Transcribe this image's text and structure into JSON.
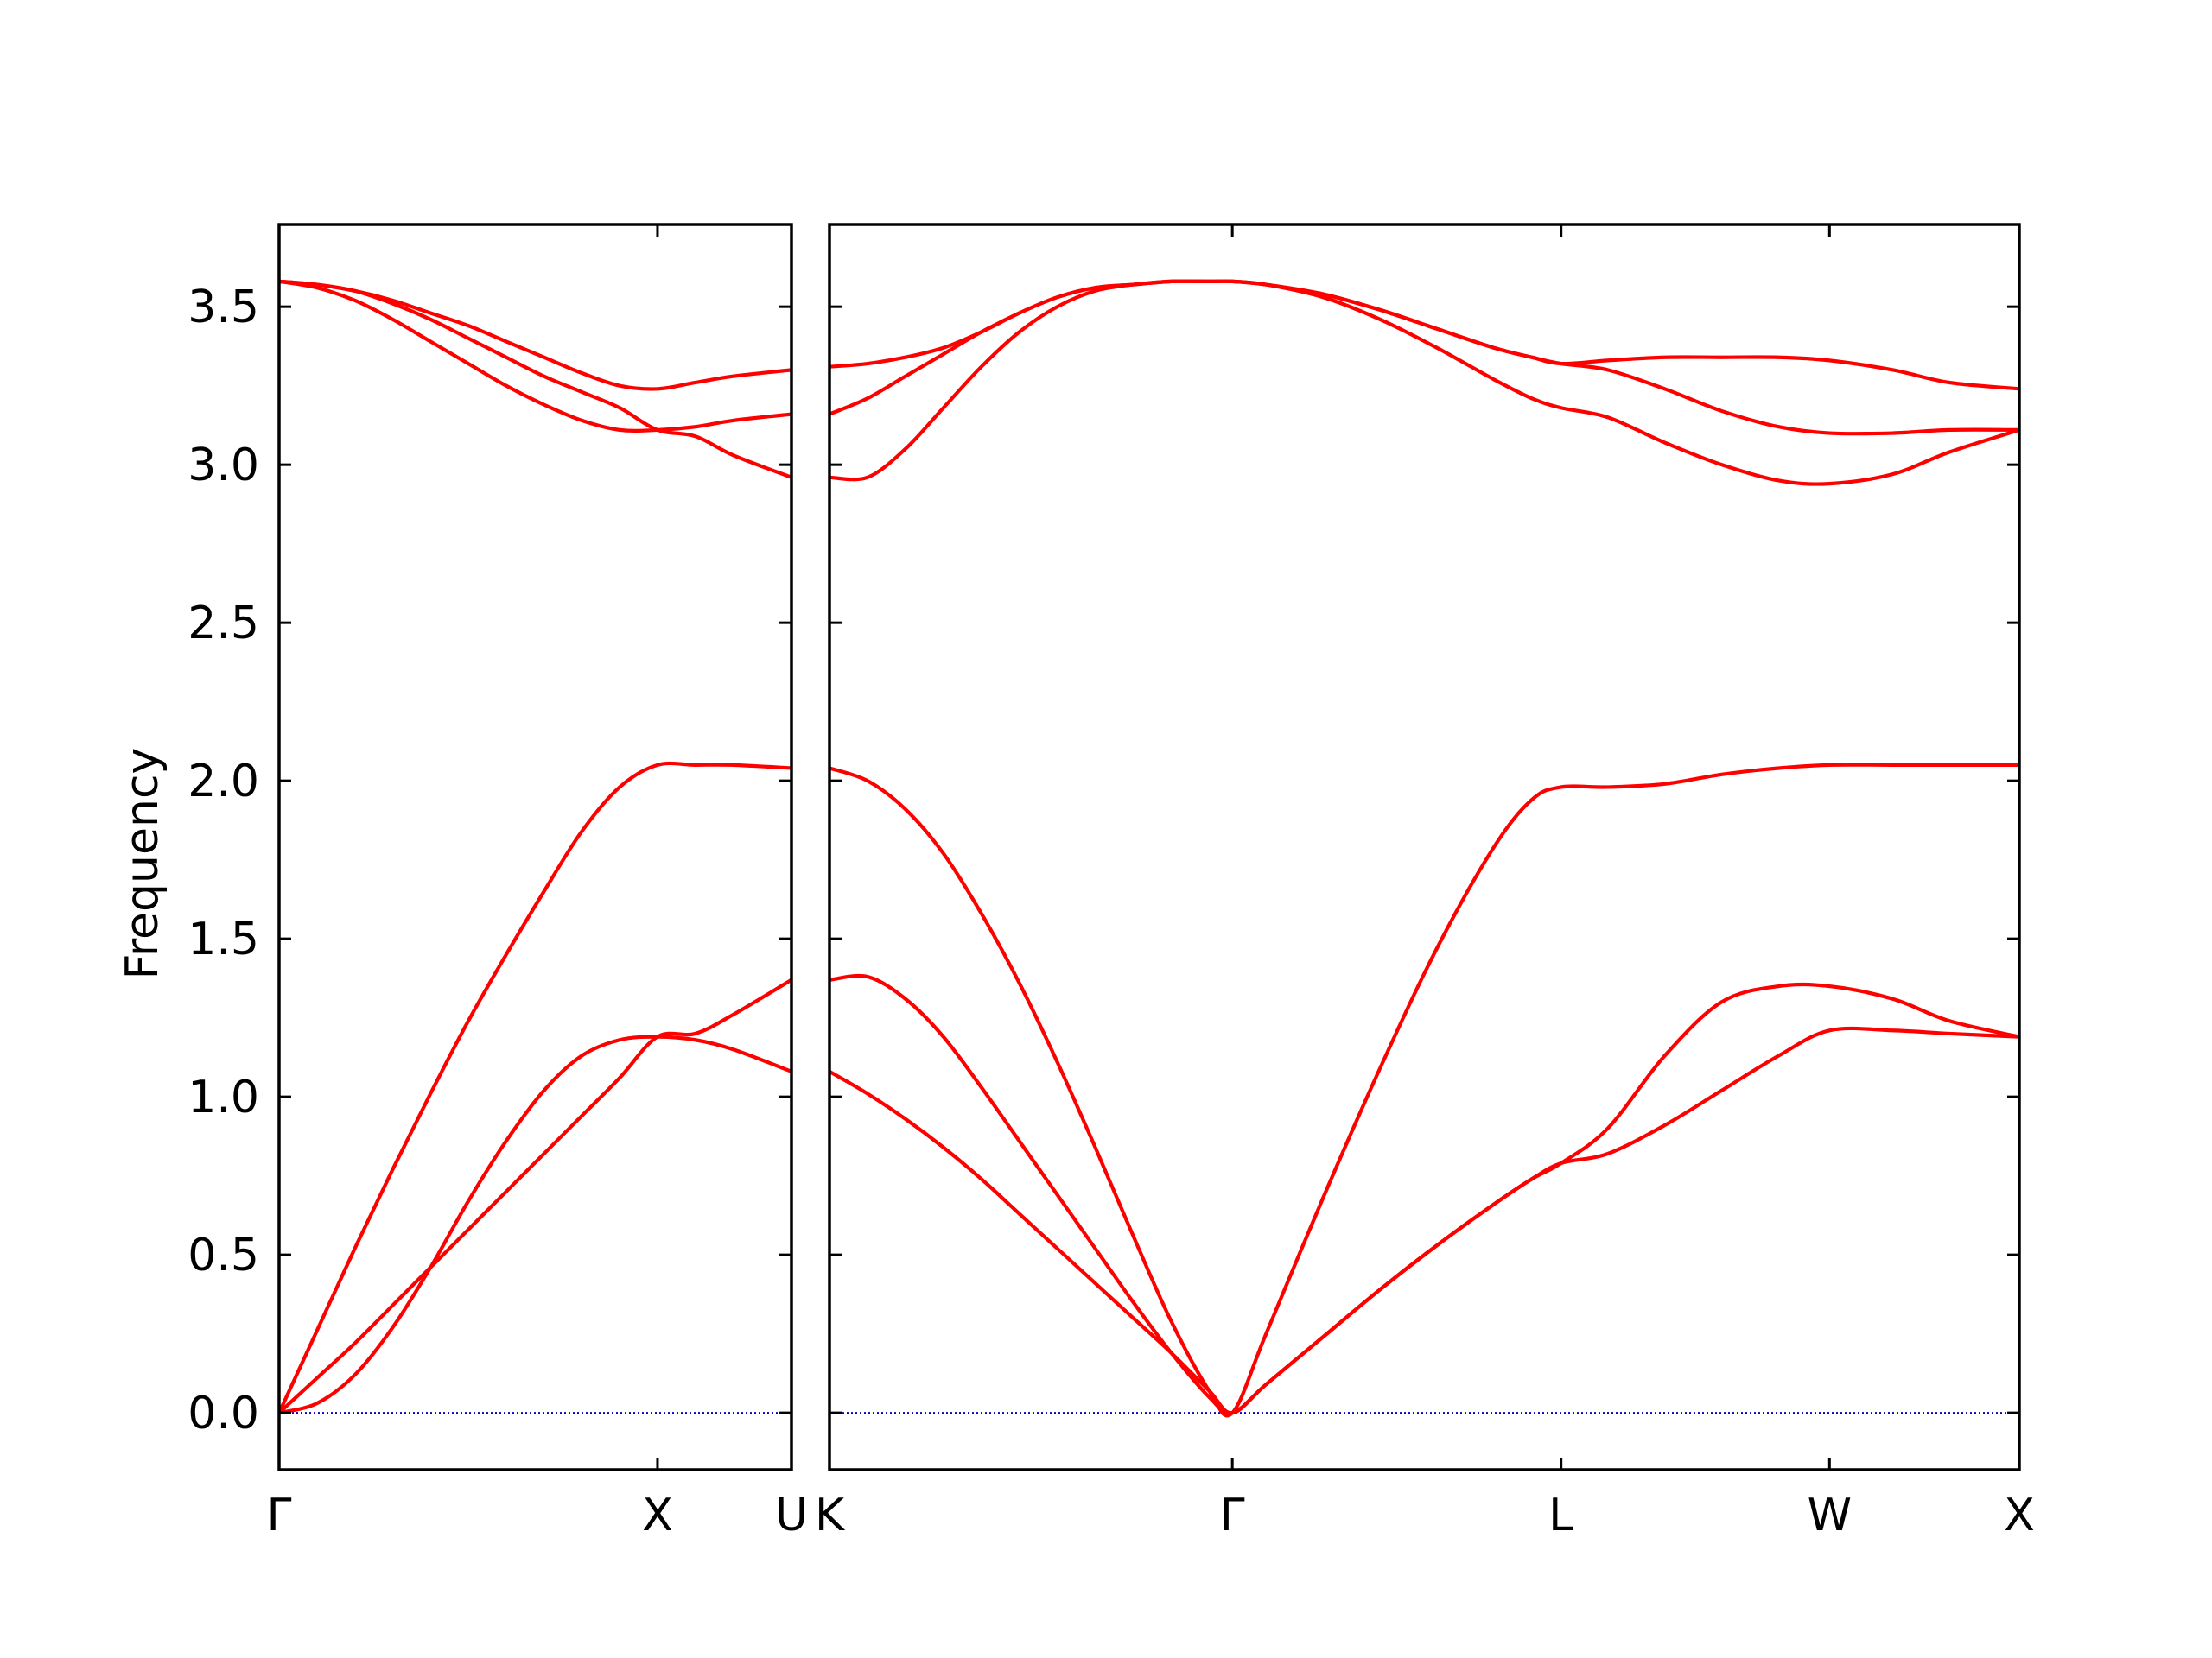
{
  "chart_data": {
    "type": "line",
    "ylabel": "Frequency",
    "ylim": [
      -0.18,
      3.76
    ],
    "yticks": [
      "0.0",
      "0.5",
      "1.0",
      "1.5",
      "2.0",
      "2.5",
      "3.0",
      "3.5"
    ],
    "colors": {
      "bands": "#ff0000",
      "zero_line": "#0000cc",
      "axes": "#000000"
    },
    "zero_line": {
      "y": 0,
      "style": "dotted"
    },
    "grid": false,
    "panels": [
      {
        "xticks": [
          {
            "pos": 0.0,
            "label": "Γ"
          },
          {
            "pos": 1.0,
            "label": "X"
          },
          {
            "pos": 1.354,
            "label": "U"
          }
        ],
        "xlim": [
          0.0,
          1.354
        ],
        "series": [
          {
            "x": [
              0,
              0.1,
              0.2,
              0.3,
              0.4,
              0.5,
              0.6,
              0.7,
              0.8,
              0.9,
              1.0,
              1.1,
              1.2,
              1.354
            ],
            "values": [
              0.0,
              0.11,
              0.22,
              0.34,
              0.46,
              0.58,
              0.7,
              0.82,
              0.94,
              1.06,
              1.19,
              1.2,
              1.26,
              1.37
            ]
          },
          {
            "x": [
              0,
              0.1,
              0.2,
              0.3,
              0.4,
              0.5,
              0.6,
              0.7,
              0.8,
              0.9,
              1.0,
              1.1,
              1.2,
              1.354
            ],
            "values": [
              0.0,
              0.03,
              0.12,
              0.27,
              0.46,
              0.67,
              0.86,
              1.02,
              1.13,
              1.18,
              1.19,
              1.18,
              1.15,
              1.08
            ]
          },
          {
            "x": [
              0,
              0.1,
              0.2,
              0.3,
              0.4,
              0.5,
              0.6,
              0.7,
              0.8,
              0.9,
              1.0,
              1.1,
              1.2,
              1.354
            ],
            "values": [
              0.0,
              0.26,
              0.52,
              0.77,
              1.01,
              1.24,
              1.45,
              1.65,
              1.84,
              1.98,
              2.05,
              2.05,
              2.05,
              2.04
            ]
          },
          {
            "x": [
              0,
              0.1,
              0.2,
              0.3,
              0.4,
              0.5,
              0.6,
              0.7,
              0.8,
              0.9,
              1.0,
              1.1,
              1.2,
              1.354
            ],
            "values": [
              3.58,
              3.57,
              3.55,
              3.51,
              3.46,
              3.4,
              3.34,
              3.28,
              3.23,
              3.18,
              3.11,
              3.09,
              3.03,
              2.96
            ]
          },
          {
            "x": [
              0,
              0.1,
              0.2,
              0.3,
              0.4,
              0.5,
              0.6,
              0.7,
              0.8,
              0.9,
              1.0,
              1.1,
              1.2,
              1.354
            ],
            "values": [
              3.58,
              3.56,
              3.52,
              3.46,
              3.39,
              3.32,
              3.25,
              3.19,
              3.14,
              3.11,
              3.11,
              3.12,
              3.14,
              3.16
            ]
          },
          {
            "x": [
              0,
              0.1,
              0.2,
              0.3,
              0.4,
              0.5,
              0.6,
              0.7,
              0.8,
              0.9,
              1.0,
              1.1,
              1.2,
              1.354
            ],
            "values": [
              3.58,
              3.57,
              3.55,
              3.52,
              3.48,
              3.44,
              3.39,
              3.34,
              3.29,
              3.25,
              3.24,
              3.26,
              3.28,
              3.3
            ]
          }
        ]
      },
      {
        "xticks": [
          {
            "pos": 0.0,
            "label": "K"
          },
          {
            "pos": 1.061,
            "label": "Γ"
          },
          {
            "pos": 1.927,
            "label": "L"
          },
          {
            "pos": 2.634,
            "label": "W"
          },
          {
            "pos": 3.134,
            "label": "X"
          }
        ],
        "xlim": [
          0.0,
          3.134
        ],
        "series": [
          {
            "x": [
              0,
              0.1,
              0.2,
              0.3,
              0.4,
              0.5,
              0.6,
              0.7,
              0.8,
              0.9,
              1.0,
              1.061,
              1.15,
              1.3,
              1.45,
              1.6,
              1.75,
              1.85,
              1.927,
              2.05,
              2.2,
              2.35,
              2.5,
              2.634,
              2.8,
              2.95,
              3.134
            ],
            "values": [
              1.08,
              1.01,
              0.93,
              0.84,
              0.74,
              0.63,
              0.52,
              0.41,
              0.3,
              0.19,
              0.07,
              0.0,
              0.09,
              0.24,
              0.39,
              0.53,
              0.66,
              0.74,
              0.79,
              0.82,
              0.91,
              1.02,
              1.13,
              1.21,
              1.21,
              1.2,
              1.19
            ]
          },
          {
            "x": [
              0,
              0.1,
              0.2,
              0.3,
              0.4,
              0.5,
              0.6,
              0.7,
              0.8,
              0.9,
              1.0,
              1.061,
              1.15,
              1.3,
              1.45,
              1.6,
              1.75,
              1.85,
              1.927,
              2.05,
              2.2,
              2.35,
              2.5,
              2.634,
              2.8,
              2.95,
              3.134
            ],
            "values": [
              1.37,
              1.38,
              1.31,
              1.19,
              1.03,
              0.86,
              0.69,
              0.52,
              0.35,
              0.19,
              0.05,
              0.0,
              0.09,
              0.24,
              0.39,
              0.53,
              0.66,
              0.74,
              0.79,
              0.9,
              1.13,
              1.3,
              1.35,
              1.35,
              1.31,
              1.24,
              1.19
            ]
          },
          {
            "x": [
              0,
              0.1,
              0.2,
              0.3,
              0.4,
              0.5,
              0.6,
              0.7,
              0.8,
              0.9,
              1.0,
              1.061,
              1.15,
              1.3,
              1.45,
              1.6,
              1.75,
              1.85,
              1.927,
              2.05,
              2.2,
              2.35,
              2.5,
              2.634,
              2.8,
              2.95,
              3.134
            ],
            "values": [
              2.04,
              2.0,
              1.91,
              1.77,
              1.58,
              1.36,
              1.11,
              0.84,
              0.56,
              0.29,
              0.07,
              0.0,
              0.25,
              0.68,
              1.09,
              1.47,
              1.79,
              1.94,
              1.98,
              1.98,
              1.99,
              2.02,
              2.04,
              2.05,
              2.05,
              2.05,
              2.05
            ]
          },
          {
            "x": [
              0,
              0.1,
              0.2,
              0.3,
              0.4,
              0.5,
              0.6,
              0.7,
              0.8,
              0.9,
              1.0,
              1.061,
              1.15,
              1.3,
              1.45,
              1.6,
              1.75,
              1.85,
              1.927,
              2.05,
              2.2,
              2.35,
              2.5,
              2.634,
              2.8,
              2.95,
              3.134
            ],
            "values": [
              2.96,
              2.96,
              3.05,
              3.18,
              3.31,
              3.42,
              3.5,
              3.55,
              3.57,
              3.58,
              3.58,
              3.58,
              3.57,
              3.53,
              3.46,
              3.37,
              3.27,
              3.21,
              3.18,
              3.15,
              3.07,
              3.0,
              2.95,
              2.94,
              2.97,
              3.04,
              3.11
            ]
          },
          {
            "x": [
              0,
              0.1,
              0.2,
              0.3,
              0.4,
              0.5,
              0.6,
              0.7,
              0.8,
              0.9,
              1.0,
              1.061,
              1.15,
              1.3,
              1.45,
              1.6,
              1.75,
              1.85,
              1.927,
              2.05,
              2.2,
              2.35,
              2.5,
              2.634,
              2.8,
              2.95,
              3.134
            ],
            "values": [
              3.16,
              3.21,
              3.28,
              3.35,
              3.42,
              3.48,
              3.53,
              3.56,
              3.57,
              3.58,
              3.58,
              3.58,
              3.57,
              3.54,
              3.49,
              3.43,
              3.37,
              3.34,
              3.32,
              3.3,
              3.24,
              3.17,
              3.12,
              3.1,
              3.1,
              3.11,
              3.11
            ]
          },
          {
            "x": [
              0,
              0.1,
              0.2,
              0.3,
              0.4,
              0.5,
              0.6,
              0.7,
              0.8,
              0.9,
              1.0,
              1.061,
              1.15,
              1.3,
              1.45,
              1.6,
              1.75,
              1.85,
              1.927,
              2.05,
              2.2,
              2.35,
              2.5,
              2.634,
              2.8,
              2.95,
              3.134
            ],
            "values": [
              3.31,
              3.32,
              3.34,
              3.37,
              3.42,
              3.48,
              3.53,
              3.56,
              3.57,
              3.58,
              3.58,
              3.58,
              3.57,
              3.54,
              3.49,
              3.43,
              3.37,
              3.34,
              3.32,
              3.33,
              3.34,
              3.34,
              3.34,
              3.33,
              3.3,
              3.26,
              3.24
            ]
          }
        ]
      }
    ]
  }
}
